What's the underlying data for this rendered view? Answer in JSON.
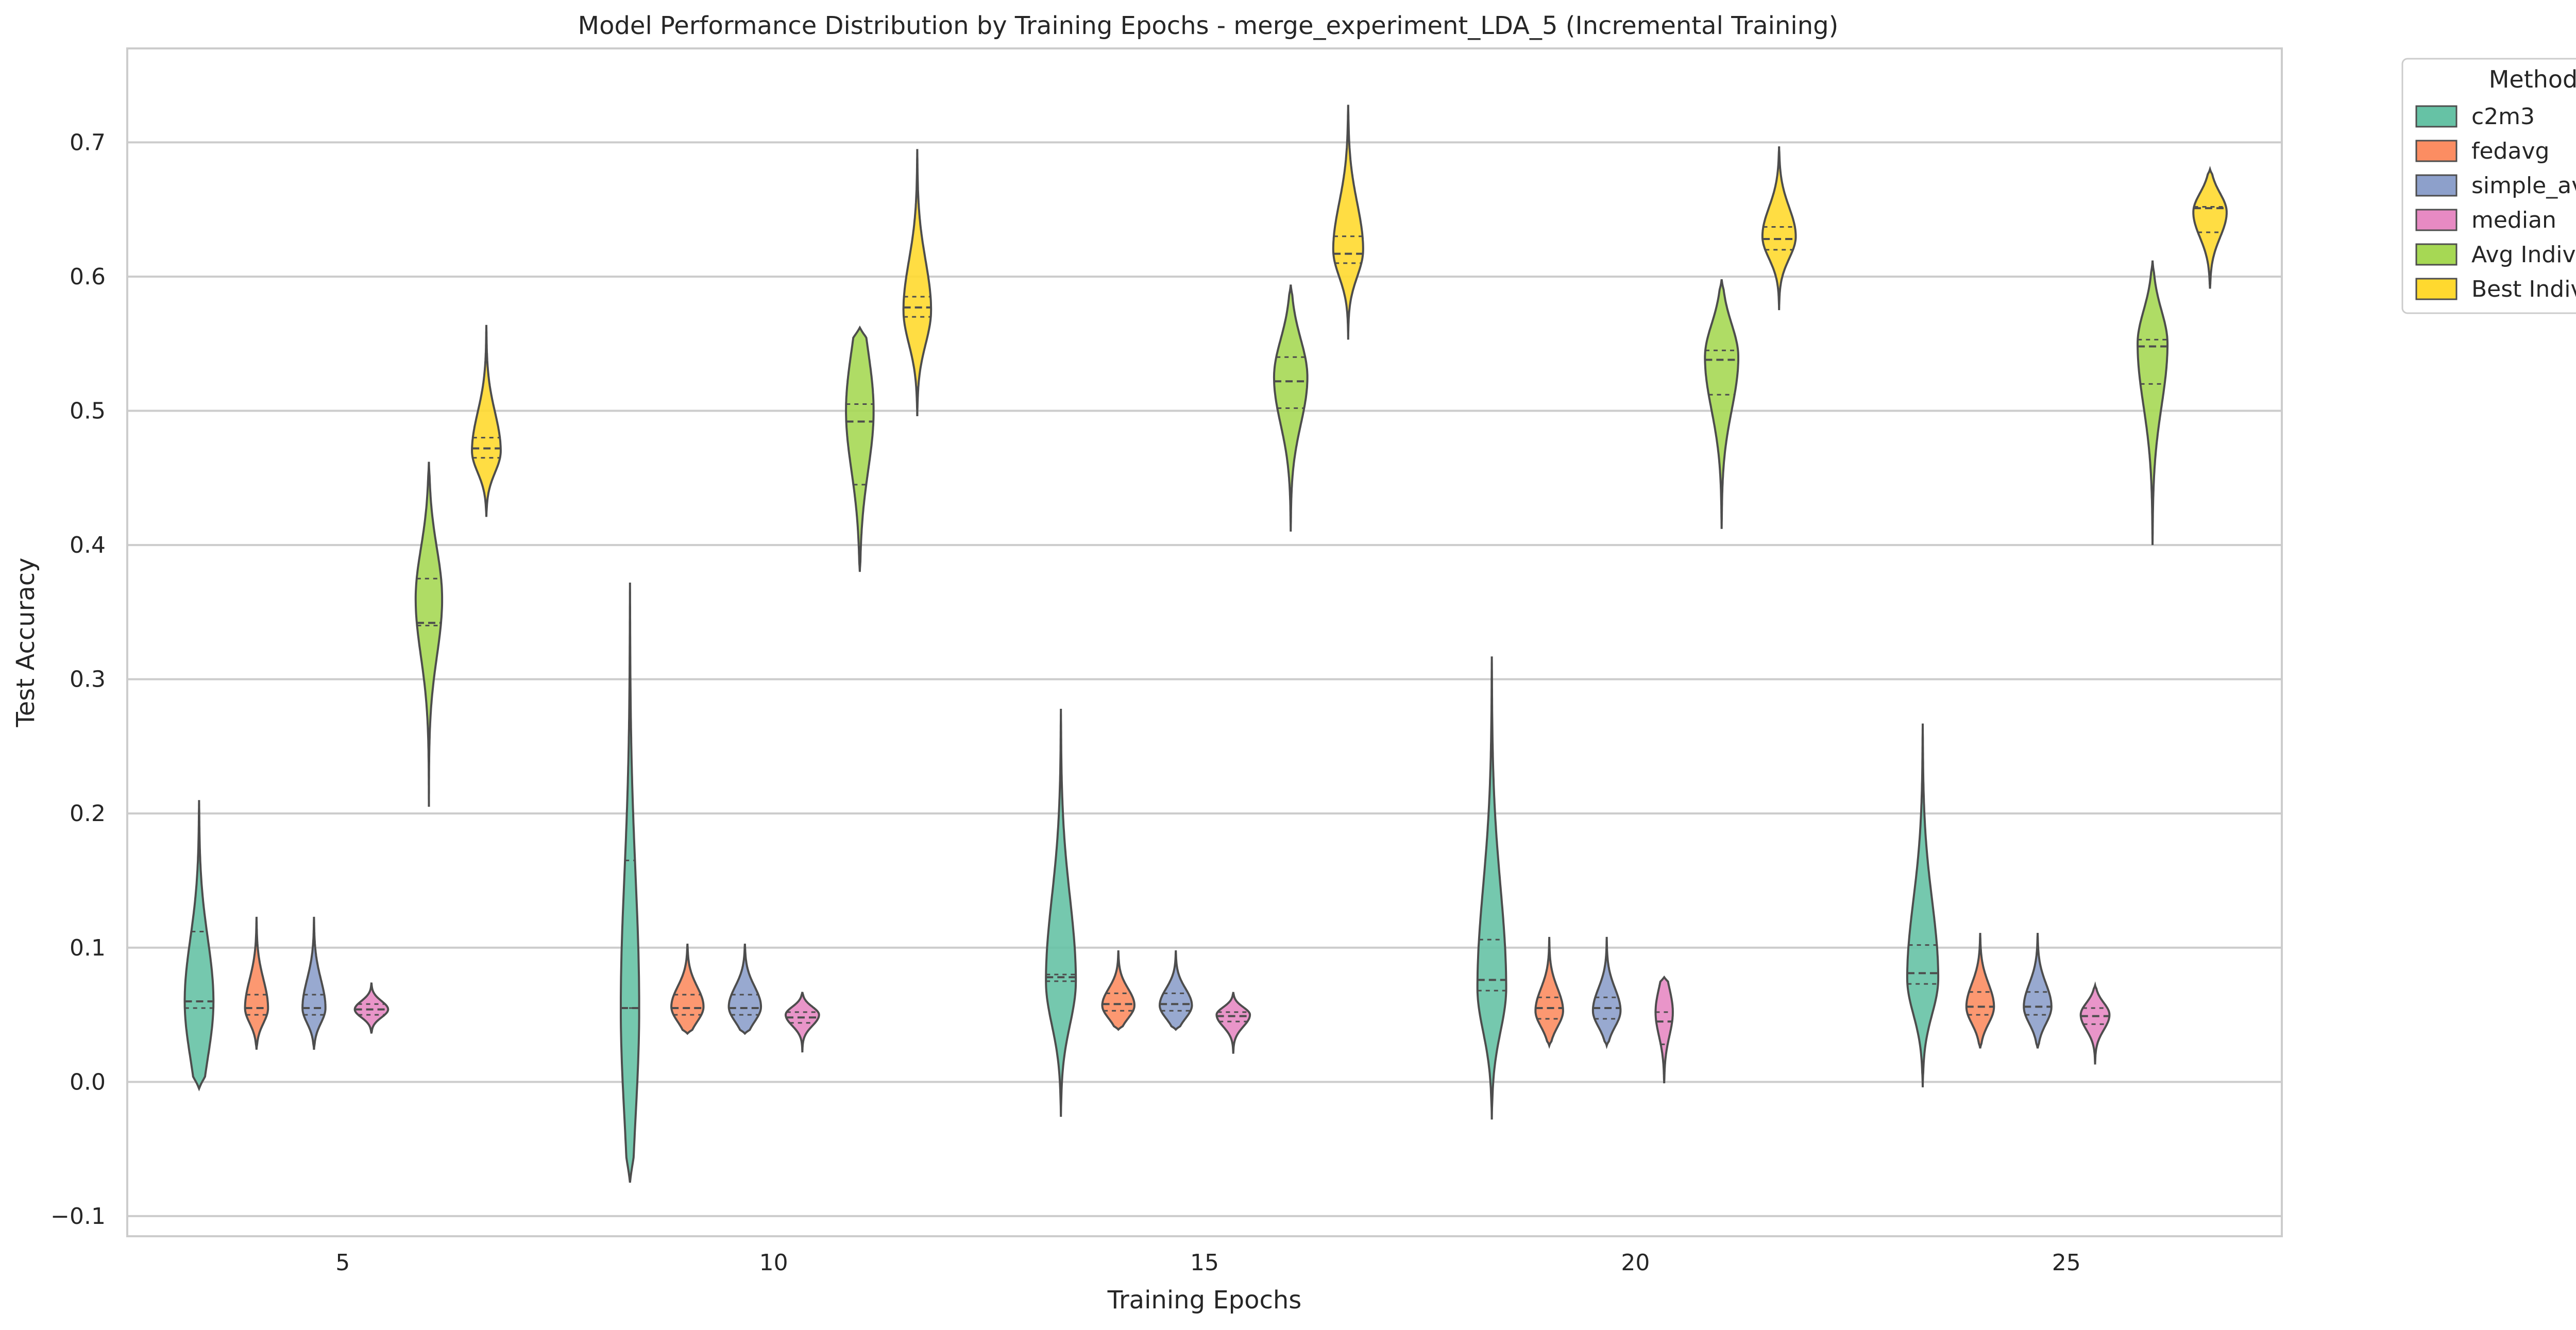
{
  "chart_data": {
    "type": "violin",
    "title": "Model Performance Distribution by Training Epochs - merge_experiment_LDA_5 (Incremental Training)",
    "xlabel": "Training Epochs",
    "ylabel": "Test Accuracy",
    "categories": [
      "5",
      "10",
      "15",
      "20",
      "25"
    ],
    "ylim": [
      -0.115,
      0.77
    ],
    "yticks": [
      -0.1,
      0.0,
      0.1,
      0.2,
      0.3,
      0.4,
      0.5,
      0.6,
      0.7
    ],
    "ytick_labels": [
      "−0.1",
      "0.0",
      "0.1",
      "0.2",
      "0.3",
      "0.4",
      "0.5",
      "0.6",
      "0.7"
    ],
    "grid": "horizontal",
    "legend": {
      "title": "Method",
      "placement": "outside-top-right"
    },
    "series": [
      {
        "name": "c2m3",
        "color": "#66c2a5",
        "violins": [
          {
            "min": -0.005,
            "max": 0.21,
            "q1": 0.055,
            "median": 0.06,
            "q3": 0.112,
            "mode": 0.06,
            "width": 0.5
          },
          {
            "min": -0.075,
            "max": 0.372,
            "q1": 0.055,
            "median": 0.055,
            "q3": 0.165,
            "mode": 0.055,
            "width": 0.32
          },
          {
            "min": -0.026,
            "max": 0.278,
            "q1": 0.075,
            "median": 0.078,
            "q3": 0.08,
            "mode": 0.075,
            "width": 0.52
          },
          {
            "min": -0.028,
            "max": 0.317,
            "q1": 0.068,
            "median": 0.076,
            "q3": 0.106,
            "mode": 0.07,
            "width": 0.5
          },
          {
            "min": -0.004,
            "max": 0.267,
            "q1": 0.073,
            "median": 0.081,
            "q3": 0.102,
            "mode": 0.077,
            "width": 0.54
          }
        ]
      },
      {
        "name": "fedavg",
        "color": "#fc8d62",
        "violins": [
          {
            "min": 0.024,
            "max": 0.123,
            "q1": 0.05,
            "median": 0.055,
            "q3": 0.065,
            "mode": 0.055,
            "width": 0.4
          },
          {
            "min": 0.036,
            "max": 0.103,
            "q1": 0.05,
            "median": 0.055,
            "q3": 0.065,
            "mode": 0.056,
            "width": 0.56
          },
          {
            "min": 0.039,
            "max": 0.098,
            "q1": 0.053,
            "median": 0.058,
            "q3": 0.066,
            "mode": 0.057,
            "width": 0.56
          },
          {
            "min": 0.027,
            "max": 0.108,
            "q1": 0.047,
            "median": 0.055,
            "q3": 0.063,
            "mode": 0.053,
            "width": 0.48
          },
          {
            "min": 0.025,
            "max": 0.111,
            "q1": 0.05,
            "median": 0.056,
            "q3": 0.067,
            "mode": 0.056,
            "width": 0.48
          }
        ]
      },
      {
        "name": "simple_avg",
        "color": "#8da0cb",
        "violins": [
          {
            "min": 0.024,
            "max": 0.123,
            "q1": 0.05,
            "median": 0.055,
            "q3": 0.065,
            "mode": 0.055,
            "width": 0.4
          },
          {
            "min": 0.036,
            "max": 0.103,
            "q1": 0.05,
            "median": 0.055,
            "q3": 0.065,
            "mode": 0.056,
            "width": 0.56
          },
          {
            "min": 0.039,
            "max": 0.098,
            "q1": 0.053,
            "median": 0.058,
            "q3": 0.066,
            "mode": 0.057,
            "width": 0.56
          },
          {
            "min": 0.027,
            "max": 0.108,
            "q1": 0.047,
            "median": 0.055,
            "q3": 0.063,
            "mode": 0.053,
            "width": 0.48
          },
          {
            "min": 0.025,
            "max": 0.111,
            "q1": 0.05,
            "median": 0.056,
            "q3": 0.067,
            "mode": 0.056,
            "width": 0.48
          }
        ]
      },
      {
        "name": "median",
        "color": "#e78ac3",
        "violins": [
          {
            "min": 0.036,
            "max": 0.074,
            "q1": 0.05,
            "median": 0.054,
            "q3": 0.058,
            "mode": 0.054,
            "width": 0.58
          },
          {
            "min": 0.022,
            "max": 0.067,
            "q1": 0.044,
            "median": 0.048,
            "q3": 0.052,
            "mode": 0.05,
            "width": 0.58
          },
          {
            "min": 0.021,
            "max": 0.067,
            "q1": 0.045,
            "median": 0.049,
            "q3": 0.052,
            "mode": 0.05,
            "width": 0.58
          },
          {
            "min": -0.001,
            "max": 0.078,
            "q1": 0.028,
            "median": 0.045,
            "q3": 0.052,
            "mode": 0.052,
            "width": 0.3
          },
          {
            "min": 0.013,
            "max": 0.072,
            "q1": 0.043,
            "median": 0.049,
            "q3": 0.055,
            "mode": 0.05,
            "width": 0.5
          }
        ]
      },
      {
        "name": "Avg Individual",
        "color": "#a6d854",
        "violins": [
          {
            "min": 0.205,
            "max": 0.462,
            "q1": 0.34,
            "median": 0.342,
            "q3": 0.375,
            "mode": 0.36,
            "width": 0.46
          },
          {
            "min": 0.38,
            "max": 0.562,
            "q1": 0.445,
            "median": 0.492,
            "q3": 0.505,
            "mode": 0.5,
            "width": 0.48
          },
          {
            "min": 0.41,
            "max": 0.594,
            "q1": 0.502,
            "median": 0.522,
            "q3": 0.54,
            "mode": 0.525,
            "width": 0.58
          },
          {
            "min": 0.412,
            "max": 0.598,
            "q1": 0.512,
            "median": 0.538,
            "q3": 0.545,
            "mode": 0.54,
            "width": 0.58
          },
          {
            "min": 0.4,
            "max": 0.612,
            "q1": 0.52,
            "median": 0.548,
            "q3": 0.553,
            "mode": 0.55,
            "width": 0.52
          }
        ]
      },
      {
        "name": "Best Individual",
        "color": "#ffd92f",
        "violins": [
          {
            "min": 0.421,
            "max": 0.564,
            "q1": 0.465,
            "median": 0.472,
            "q3": 0.48,
            "mode": 0.47,
            "width": 0.5
          },
          {
            "min": 0.496,
            "max": 0.695,
            "q1": 0.57,
            "median": 0.577,
            "q3": 0.585,
            "mode": 0.575,
            "width": 0.48
          },
          {
            "min": 0.553,
            "max": 0.728,
            "q1": 0.61,
            "median": 0.617,
            "q3": 0.63,
            "mode": 0.62,
            "width": 0.52
          },
          {
            "min": 0.575,
            "max": 0.697,
            "q1": 0.62,
            "median": 0.628,
            "q3": 0.637,
            "mode": 0.63,
            "width": 0.58
          },
          {
            "min": 0.591,
            "max": 0.68,
            "q1": 0.633,
            "median": 0.651,
            "q3": 0.652,
            "mode": 0.648,
            "width": 0.58
          }
        ]
      }
    ]
  }
}
